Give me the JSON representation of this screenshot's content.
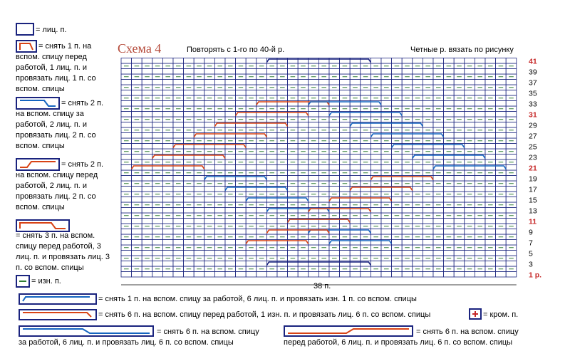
{
  "legend": [
    {
      "text": "= лиц. п."
    },
    {
      "text": "= снять 1 п. на вспом. спицу перед работой, 1 лиц. п. и провязать лиц. 1 п. со вспом. спицы"
    },
    {
      "text": "= снять 2 п. на вспом. спицу за работой, 2 лиц. п. и провязать лиц. 2 п. со вспом. спицы"
    },
    {
      "text": "= снять 2 п. на вспом. спицу перед работой, 2 лиц. п. и провязать лиц. 2 п. со вспом. спицы"
    },
    {
      "text": "= снять 3 п. на вспом. спицу перед работой, 3 лиц. п. и провязать лиц. 3 п. со вспом. спицы"
    },
    {
      "text": "= изн. п."
    }
  ],
  "scheme": {
    "title": "Схема 4",
    "note_left": "Повторять с 1-го по 40-й р.",
    "note_right": "Четные р. вязать по рисунку",
    "row_labels": [
      "41",
      "39",
      "37",
      "35",
      "33",
      "31",
      "29",
      "27",
      "25",
      "23",
      "21",
      "19",
      "17",
      "15",
      "13",
      "11",
      "9",
      "7",
      "5",
      "3",
      "1 р."
    ],
    "width_label": "38 п."
  },
  "bottom_legend": [
    {
      "text": "= снять 1 п. на вспом. спицу за работой, 6 лиц. п. и провязать изн. 1 п. со вспом. спицы"
    },
    {
      "text": "= снять 6 п. на вспом. спицу перед работой, 1 изн. п. и провязать лиц. 6 п. со вспом. спицы"
    },
    {
      "text": "= кром. п."
    },
    {
      "text": "= снять 6 п. на вспом. спицу за работой, 6 лиц. п. и провязать лиц. 6 п. со вспом. спицы"
    },
    {
      "text": "= снять 6 п. на вспом. спицу перед работой, 6 лиц. п. и провязать лиц. 6 п. со вспом. спицы"
    }
  ]
}
